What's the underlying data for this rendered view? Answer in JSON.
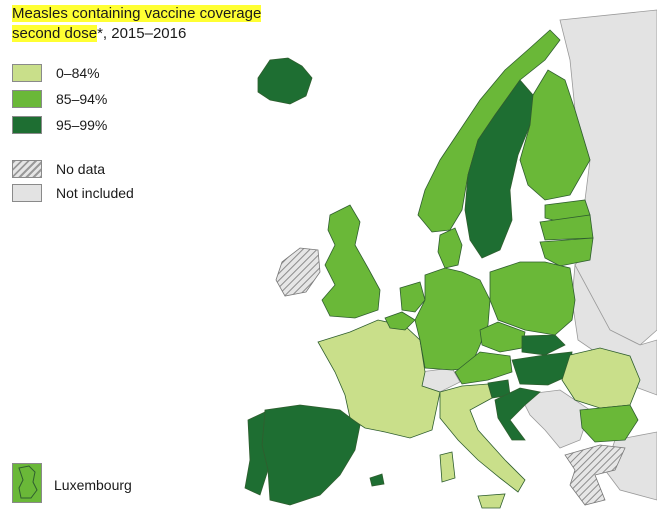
{
  "title": {
    "line1": "Measles containing vaccine coverage",
    "line2_highlight": "second dose",
    "line2_rest": "*, 2015–2016"
  },
  "legend": {
    "items": [
      {
        "label": "0–84%",
        "color": "#c9df8a"
      },
      {
        "label": "85–94%",
        "color": "#6ab838"
      },
      {
        "label": "95–99%",
        "color": "#1e6e32"
      },
      {
        "label": "No data",
        "color": "hatched-grey"
      },
      {
        "label": "Not included",
        "color": "#e3e3e3"
      }
    ]
  },
  "inset": {
    "label": "Luxembourg",
    "color": "#6ab838"
  },
  "colors": {
    "low": "#c9df8a",
    "mid": "#6ab838",
    "high": "#1e6e32",
    "not_included": "#e3e3e3",
    "border": "#2f5e2f",
    "sea": "#ffffff"
  }
}
